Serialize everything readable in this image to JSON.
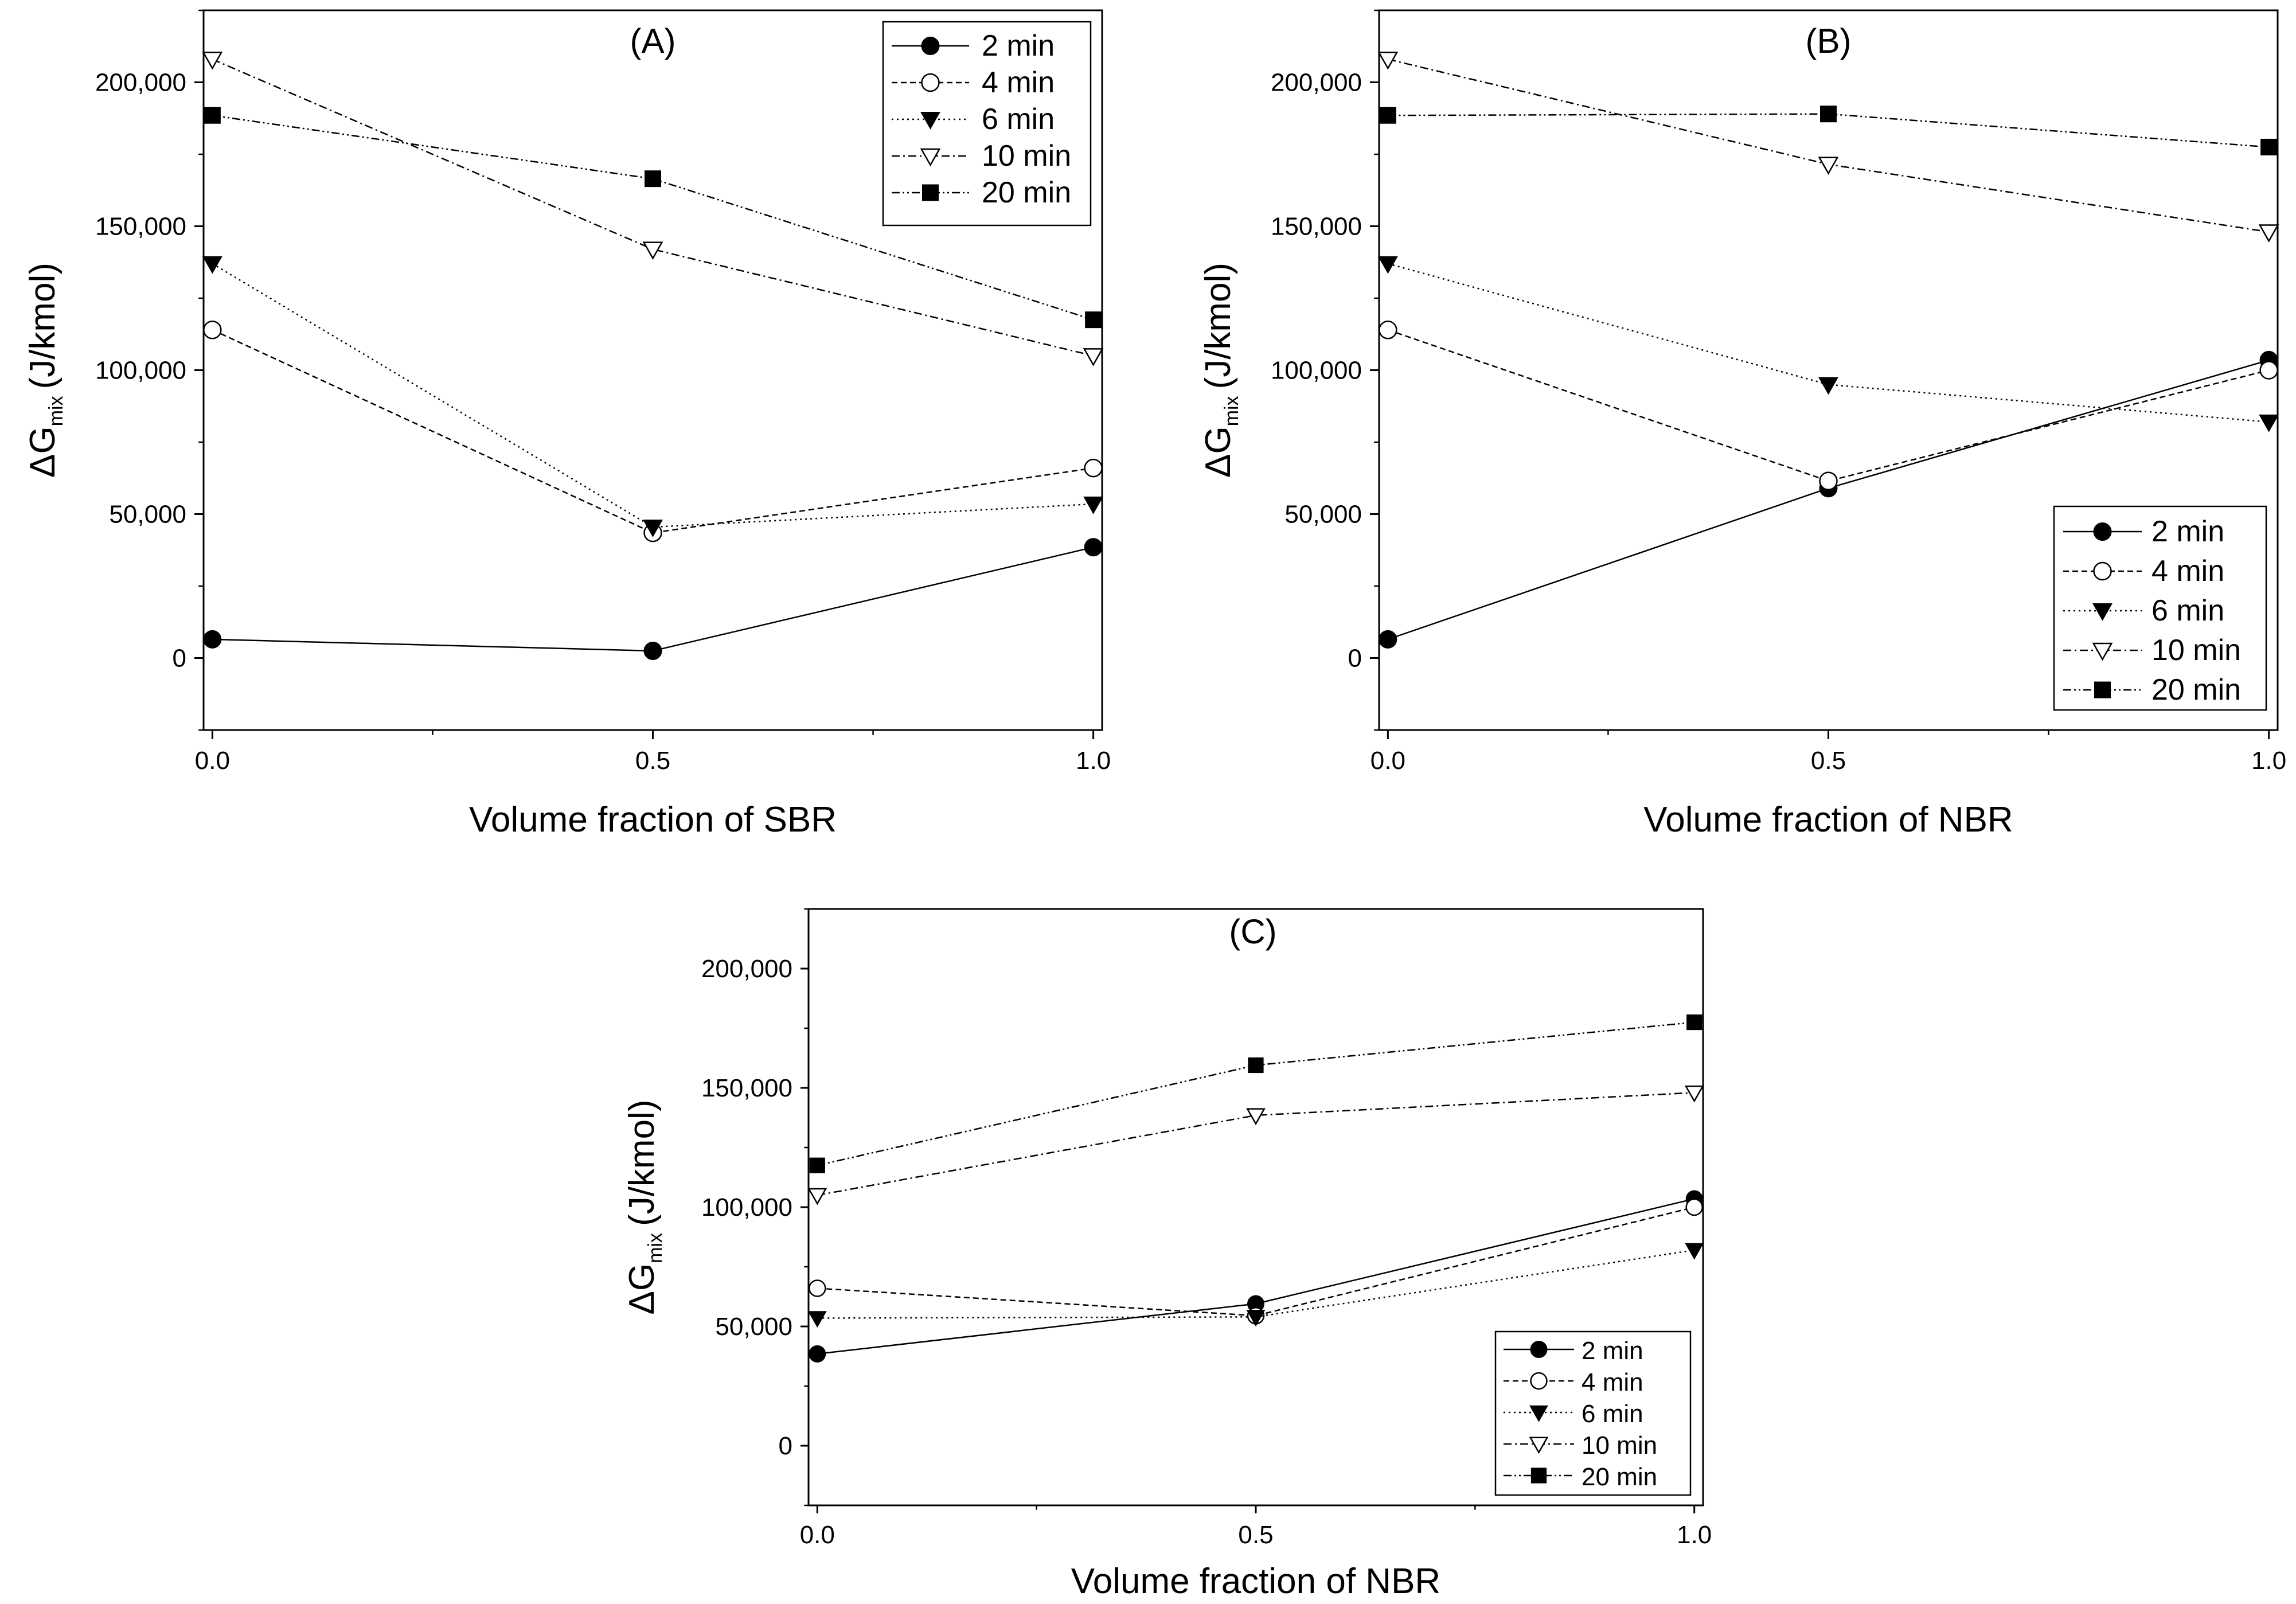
{
  "chart_data": [
    {
      "type": "line",
      "panel": "A",
      "title": "(A)",
      "xlabel": "Volume fraction of SBR",
      "ylabel_main": "ΔG",
      "ylabel_sub": "mix",
      "ylabel_unit": "(J/kmol)",
      "x": [
        0.0,
        0.5,
        1.0
      ],
      "xlim": [
        -0.01,
        1.01
      ],
      "ylim": [
        -25000,
        225000
      ],
      "xticks": [
        "0.0",
        "0.5",
        "1.0"
      ],
      "yticks": [
        "0",
        "50,000",
        "100,000",
        "150,000",
        "200,000"
      ],
      "legend_position": "top-right",
      "series": [
        {
          "name": "2 min",
          "values": [
            6500,
            2500,
            38500
          ]
        },
        {
          "name": "4 min",
          "values": [
            114000,
            43500,
            66000
          ]
        },
        {
          "name": "6 min",
          "values": [
            137000,
            45500,
            53500
          ]
        },
        {
          "name": "10 min",
          "values": [
            208000,
            142000,
            105000
          ]
        },
        {
          "name": "20 min",
          "values": [
            188500,
            166500,
            117500
          ]
        }
      ]
    },
    {
      "type": "line",
      "panel": "B",
      "title": "(B)",
      "xlabel": "Volume fraction of NBR",
      "ylabel_main": "ΔG",
      "ylabel_sub": "mix",
      "ylabel_unit": "(J/kmol)",
      "x": [
        0.0,
        0.5,
        1.0
      ],
      "xlim": [
        -0.01,
        1.01
      ],
      "ylim": [
        -25000,
        225000
      ],
      "xticks": [
        "0.0",
        "0.5",
        "1.0"
      ],
      "yticks": [
        "0",
        "50,000",
        "100,000",
        "150,000",
        "200,000"
      ],
      "legend_position": "bottom-right",
      "series": [
        {
          "name": "2 min",
          "values": [
            6500,
            59000,
            103500
          ]
        },
        {
          "name": "4 min",
          "values": [
            114000,
            61500,
            100000
          ]
        },
        {
          "name": "6 min",
          "values": [
            137000,
            95000,
            82000
          ]
        },
        {
          "name": "10 min",
          "values": [
            208000,
            171500,
            148000
          ]
        },
        {
          "name": "20 min",
          "values": [
            188500,
            189000,
            177500
          ]
        }
      ]
    },
    {
      "type": "line",
      "panel": "C",
      "title": "(C)",
      "xlabel": "Volume fraction of NBR",
      "ylabel_main": "ΔG",
      "ylabel_sub": "mix",
      "ylabel_unit": "(J/kmol)",
      "x": [
        0.0,
        0.5,
        1.0
      ],
      "xlim": [
        -0.01,
        1.01
      ],
      "ylim": [
        -25000,
        225000
      ],
      "xticks": [
        "0.0",
        "0.5",
        "1.0"
      ],
      "yticks": [
        "0",
        "50,000",
        "100,000",
        "150,000",
        "200,000"
      ],
      "legend_position": "bottom-right",
      "series": [
        {
          "name": "2 min",
          "values": [
            38500,
            59500,
            103500
          ]
        },
        {
          "name": "4 min",
          "values": [
            66000,
            54500,
            100000
          ]
        },
        {
          "name": "6 min",
          "values": [
            53500,
            54000,
            82000
          ]
        },
        {
          "name": "10 min",
          "values": [
            105000,
            138500,
            148000
          ]
        },
        {
          "name": "20 min",
          "values": [
            117500,
            159500,
            177500
          ]
        }
      ]
    }
  ]
}
